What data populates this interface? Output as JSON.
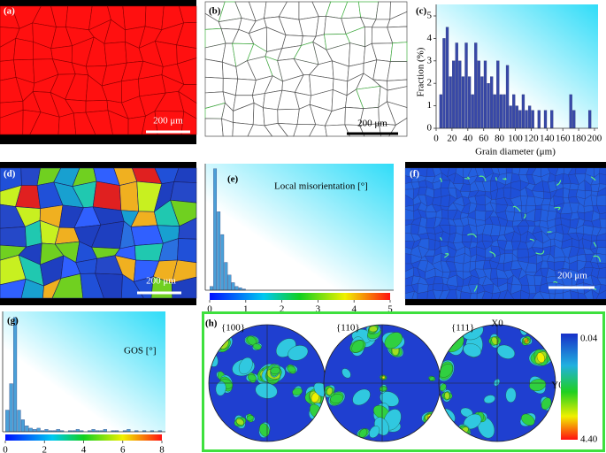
{
  "panels": {
    "a": {
      "label": "(a)",
      "scale_bar": "200 μm"
    },
    "b": {
      "label": "(b)",
      "scale_bar": "200 μm"
    },
    "d": {
      "label": "(d)",
      "scale_bar": "200 μm"
    },
    "f": {
      "label": "(f)",
      "scale_bar": "200 μm"
    }
  },
  "chart_data": [
    {
      "type": "histogram",
      "label": "(c)",
      "x_label": "Grain diameter (μm)",
      "y_label": "Fraction (%)",
      "bins": [
        4,
        8,
        12,
        16,
        20,
        24,
        28,
        32,
        36,
        40,
        44,
        48,
        52,
        56,
        60,
        64,
        68,
        72,
        76,
        80,
        84,
        88,
        92,
        96,
        100,
        104,
        108,
        112,
        116,
        120,
        124,
        128,
        132,
        136,
        140,
        144,
        148,
        152,
        156,
        160,
        164,
        168,
        172,
        176,
        180,
        184,
        188,
        192,
        196
      ],
      "values": [
        1.5,
        4,
        4.5,
        2.3,
        3,
        3.8,
        3,
        2.3,
        3.8,
        2.3,
        1.5,
        3.8,
        3,
        2.3,
        3,
        2,
        2.3,
        1.5,
        3,
        1.5,
        1.5,
        2.8,
        1,
        1.5,
        1,
        0.8,
        1.5,
        0.8,
        1,
        0.8,
        0,
        0.8,
        0,
        0.8,
        0,
        0.8,
        0,
        0,
        0,
        0,
        0,
        1.5,
        0.8,
        0,
        0,
        0,
        0,
        0.8
      ],
      "color": "#3848a8",
      "xlim": [
        0,
        200
      ],
      "ylim": [
        0,
        5
      ],
      "xticks": [
        0,
        20,
        40,
        60,
        80,
        100,
        120,
        140,
        160,
        180,
        200
      ],
      "yticks": [
        0,
        1,
        2,
        3,
        4,
        5
      ],
      "colorbar": false
    },
    {
      "type": "histogram",
      "label": "(e)",
      "annotation": "Local misorientation [°]",
      "bins": [
        0,
        0.1,
        0.2,
        0.3,
        0.4,
        0.5,
        0.6,
        0.7,
        0.8,
        0.9,
        1.0
      ],
      "values": [
        0.03,
        0.96,
        0.62,
        0.44,
        0.22,
        0.12,
        0.06,
        0.03,
        0.02,
        0.01
      ],
      "color": "#4aa0d8",
      "xlim": [
        0,
        5
      ],
      "ylim": [
        0,
        1
      ],
      "xticks": [
        0,
        1,
        2,
        3,
        4,
        5
      ],
      "colorbar": true
    },
    {
      "type": "histogram",
      "label": "(g)",
      "annotation": "GOS [°]",
      "bins": [
        0,
        0.2,
        0.4,
        0.6,
        0.8,
        1.0,
        1.2,
        1.4,
        1.6,
        1.8,
        2.0,
        2.2,
        2.4,
        2.6,
        2.8,
        3.0,
        3.2,
        3.4,
        3.6,
        3.8,
        4.0,
        4.2,
        4.4,
        4.6,
        4.8,
        5.0,
        5.2,
        5.4,
        5.6,
        5.8,
        6.0,
        6.2,
        6.4,
        6.6,
        6.8,
        7.0,
        7.2,
        7.4,
        7.6,
        7.8,
        8.0
      ],
      "values": [
        0.18,
        0.4,
        0.95,
        0.18,
        0.1,
        0.05,
        0.03,
        0.02,
        0.03,
        0.01,
        0.02,
        0.01,
        0.01,
        0.02,
        0.01,
        0,
        0.01,
        0.01,
        0.02,
        0.01,
        0,
        0.01,
        0.02,
        0.01,
        0.01,
        0.02,
        0,
        0.01,
        0.01,
        0,
        0.01,
        0.02,
        0,
        0.01,
        0,
        0.01,
        0,
        0.01,
        0,
        0.01
      ],
      "color": "#4aa0d8",
      "xlim": [
        0,
        8
      ],
      "ylim": [
        0,
        1
      ],
      "xticks": [
        0,
        2,
        4,
        6,
        8
      ],
      "colorbar": true
    }
  ],
  "pole_figures": {
    "label": "(h)",
    "planes": [
      "{100}",
      "{110}",
      "{111}"
    ],
    "x_axis": "X0",
    "y_axis": "Y0",
    "colorbar_labels": [
      "0.04",
      "4.40"
    ]
  }
}
